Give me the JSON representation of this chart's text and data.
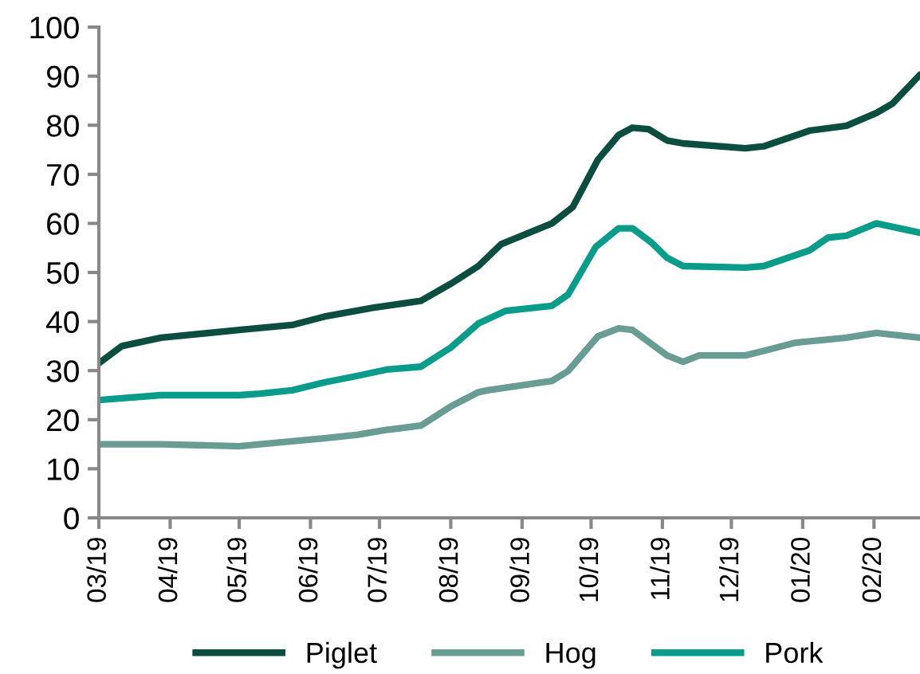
{
  "chart_data": {
    "type": "line",
    "xlim": [
      "2019-03-01",
      "2020-02-21"
    ],
    "xticks": [
      {
        "value": "2019-03-01",
        "label": "03/19"
      },
      {
        "value": "2019-04-01",
        "label": "04/19"
      },
      {
        "value": "2019-05-01",
        "label": "05/19"
      },
      {
        "value": "2019-06-01",
        "label": "06/19"
      },
      {
        "value": "2019-07-01",
        "label": "07/19"
      },
      {
        "value": "2019-08-01",
        "label": "08/19"
      },
      {
        "value": "2019-09-01",
        "label": "09/19"
      },
      {
        "value": "2019-10-01",
        "label": "10/19"
      },
      {
        "value": "2019-11-01",
        "label": "11/19"
      },
      {
        "value": "2019-12-01",
        "label": "12/19"
      },
      {
        "value": "2020-01-01",
        "label": "01/20"
      },
      {
        "value": "2020-02-01",
        "label": "02/20"
      }
    ],
    "ylim": [
      0,
      100
    ],
    "yticks": [
      0,
      10,
      20,
      30,
      40,
      50,
      60,
      70,
      80,
      90,
      100
    ],
    "grid": false,
    "legend": "bottom",
    "marker": "none",
    "line_style": "solid",
    "series": [
      {
        "name": "Piglet",
        "color": "#0b4d41",
        "x": [
          "2019-03-01",
          "2019-03-11",
          "2019-03-28",
          "2019-05-01",
          "2019-05-24",
          "2019-06-07",
          "2019-06-28",
          "2019-07-19",
          "2019-08-01",
          "2019-08-13",
          "2019-08-23",
          "2019-09-14",
          "2019-09-23",
          "2019-10-04",
          "2019-10-13",
          "2019-10-19",
          "2019-10-26",
          "2019-11-03",
          "2019-11-10",
          "2019-12-07",
          "2019-12-15",
          "2020-01-04",
          "2020-01-20",
          "2020-02-02",
          "2020-02-09",
          "2020-02-21"
        ],
        "values": [
          31.5,
          35,
          36.7,
          38.3,
          39.3,
          41,
          42.8,
          44.2,
          47.7,
          51.3,
          55.8,
          60,
          63.3,
          73,
          78,
          79.5,
          79.2,
          76.9,
          76.3,
          75.3,
          75.7,
          78.9,
          79.9,
          82.5,
          84.4,
          90.3
        ]
      },
      {
        "name": "Hog",
        "color": "#6a9c96",
        "x": [
          "2019-03-01",
          "2019-03-28",
          "2019-05-01",
          "2019-05-10",
          "2019-05-24",
          "2019-06-07",
          "2019-06-21",
          "2019-07-04",
          "2019-07-19",
          "2019-08-01",
          "2019-08-13",
          "2019-08-17",
          "2019-09-14",
          "2019-09-21",
          "2019-10-04",
          "2019-10-13",
          "2019-10-19",
          "2019-11-03",
          "2019-11-10",
          "2019-11-17",
          "2019-12-07",
          "2019-12-15",
          "2019-12-29",
          "2020-01-20",
          "2020-02-02",
          "2020-02-21"
        ],
        "values": [
          15,
          15,
          14.6,
          15,
          15.6,
          16.2,
          16.9,
          17.9,
          18.8,
          22.7,
          25.6,
          26,
          27.9,
          29.9,
          37,
          38.6,
          38.3,
          33.1,
          31.8,
          33.1,
          33.1,
          34,
          35.7,
          36.7,
          37.7,
          36.7
        ]
      },
      {
        "name": "Pork",
        "color": "#0a9c8a",
        "x": [
          "2019-03-01",
          "2019-03-28",
          "2019-05-01",
          "2019-05-10",
          "2019-05-24",
          "2019-06-07",
          "2019-06-21",
          "2019-07-04",
          "2019-07-19",
          "2019-08-01",
          "2019-08-13",
          "2019-08-25",
          "2019-09-14",
          "2019-09-21",
          "2019-10-03",
          "2019-10-13",
          "2019-10-19",
          "2019-10-27",
          "2019-11-03",
          "2019-11-10",
          "2019-12-07",
          "2019-12-15",
          "2020-01-04",
          "2020-01-12",
          "2020-01-20",
          "2020-02-02",
          "2020-02-21"
        ],
        "values": [
          24,
          25,
          25,
          25.3,
          26,
          27.6,
          28.9,
          30.2,
          30.8,
          34.7,
          39.6,
          42.2,
          43.2,
          45.5,
          55.2,
          59,
          59,
          56.2,
          53,
          51.3,
          51,
          51.3,
          54.5,
          57.1,
          57.5,
          60,
          58.1
        ]
      }
    ]
  }
}
